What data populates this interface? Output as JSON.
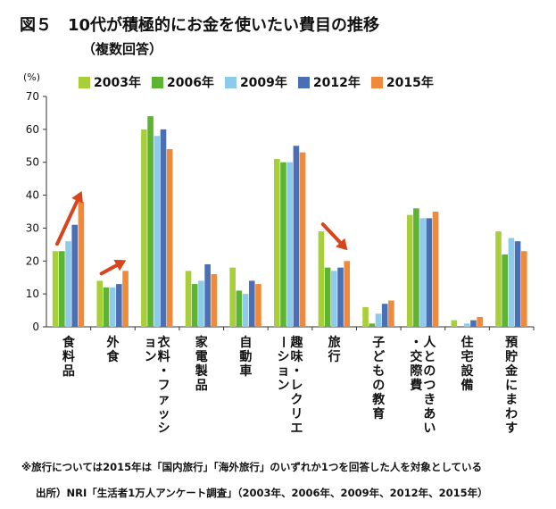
{
  "title": "図５　10代が積極的にお金を使いたい費目の推移",
  "subtitle": "（複数回答）",
  "note": "※旅行については2015年は「国内旅行」「海外旅行」のいずれか1つを回答した人を対象としている",
  "source": "出所）NRI「生活者1万人アンケート調査」（2003年、2006年、2009年、2012年、2015年）",
  "chart_data": {
    "type": "bar",
    "ylabel": "(%)",
    "ylim": [
      0,
      70
    ],
    "yticks": [
      0,
      10,
      20,
      30,
      40,
      50,
      60,
      70
    ],
    "grid": false,
    "legend_position": "top",
    "categories": [
      "食料品",
      "外食",
      "衣料・ファッション",
      "家電製品",
      "自動車",
      "趣味・レクリエーション",
      "旅行",
      "子どもの教育",
      "人とのつきあい・交際費",
      "住宅設備",
      "預貯金にまわす"
    ],
    "series": [
      {
        "name": "2003年",
        "color": "#a8cf3a",
        "values": [
          23,
          14,
          60,
          17,
          18,
          51,
          29,
          6,
          34,
          2,
          29
        ]
      },
      {
        "name": "2006年",
        "color": "#5db332",
        "values": [
          23,
          12,
          64,
          13,
          11,
          50,
          18,
          1,
          36,
          0,
          22
        ]
      },
      {
        "name": "2009年",
        "color": "#8ecbea",
        "values": [
          26,
          12,
          58,
          14,
          10,
          50,
          17,
          4,
          33,
          1,
          27
        ]
      },
      {
        "name": "2012年",
        "color": "#4b6fb5",
        "values": [
          31,
          13,
          60,
          19,
          14,
          55,
          18,
          7,
          33,
          2,
          26
        ]
      },
      {
        "name": "2015年",
        "color": "#ef8a3c",
        "values": [
          38,
          17,
          54,
          16,
          13,
          53,
          20,
          8,
          35,
          3,
          23
        ]
      }
    ],
    "annotations": [
      {
        "type": "arrow",
        "category": "食料品",
        "color": "#d8441c"
      },
      {
        "type": "arrow",
        "category": "外食",
        "color": "#d8441c"
      },
      {
        "type": "arrow",
        "category": "旅行",
        "color": "#d8441c"
      }
    ]
  }
}
